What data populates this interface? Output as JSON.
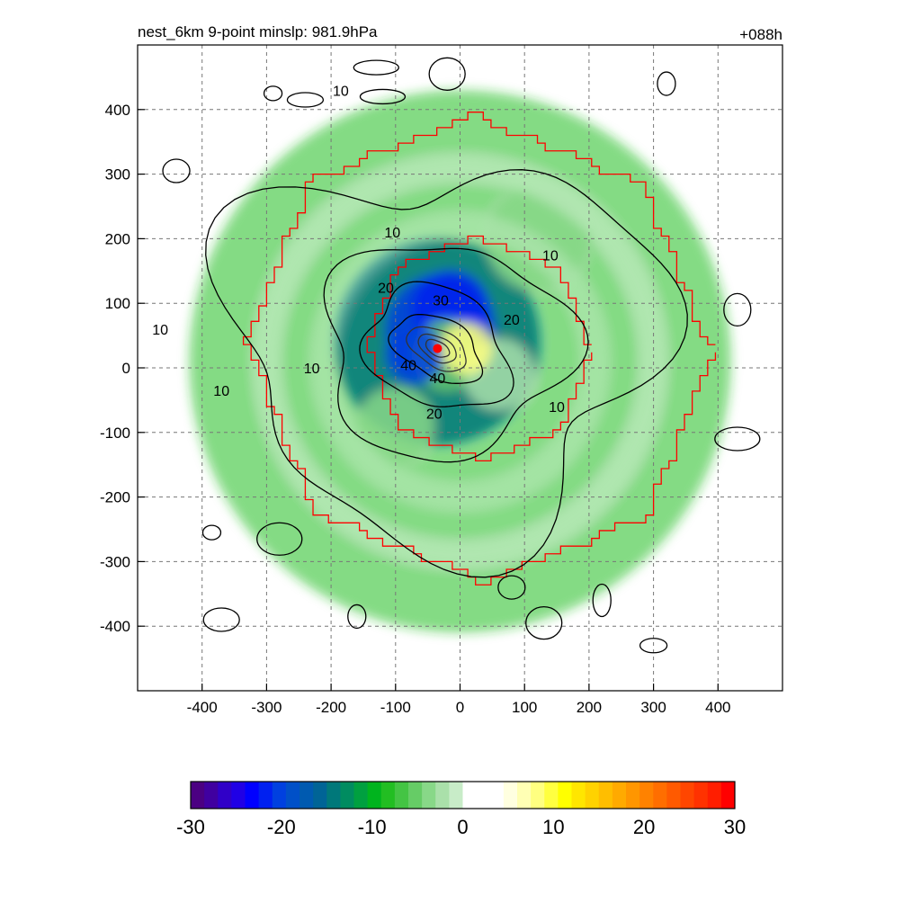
{
  "chart_data": {
    "type": "heatmap",
    "title": "nest_6km  9-point minslp: 981.9hPa",
    "subtitle": "+088h",
    "xlabel": "",
    "ylabel": "",
    "xlim": [
      -500,
      500
    ],
    "ylim": [
      -500,
      500
    ],
    "x_ticks": [
      -400,
      -300,
      -200,
      -100,
      0,
      100,
      200,
      300,
      400
    ],
    "y_ticks": [
      -400,
      -300,
      -200,
      -100,
      0,
      100,
      200,
      300,
      400
    ],
    "grid": true,
    "center_marker": {
      "x": -35,
      "y": 30,
      "color": "#ff0000"
    },
    "shaded_field": {
      "description_levels": [
        -30,
        -20,
        -10,
        0,
        10,
        20,
        30
      ],
      "blobs": [
        {
          "x": -35,
          "y": 40,
          "r": 160,
          "v": -14
        },
        {
          "x": -30,
          "y": 60,
          "r": 85,
          "v": -20
        },
        {
          "x": -15,
          "y": 90,
          "r": 60,
          "v": -22
        },
        {
          "x": -70,
          "y": 20,
          "r": 45,
          "v": -21
        },
        {
          "x": 10,
          "y": 30,
          "r": 40,
          "v": 8
        },
        {
          "x": -20,
          "y": 20,
          "r": 55,
          "v": -6
        },
        {
          "x": 60,
          "y": -10,
          "r": 55,
          "v": -3
        },
        {
          "x": -100,
          "y": -90,
          "r": 60,
          "v": -4
        },
        {
          "x": 120,
          "y": 200,
          "r": 80,
          "v": -4
        },
        {
          "x": 0,
          "y": 10,
          "r": 420,
          "v": -8
        }
      ]
    },
    "contours": {
      "levels": [
        10,
        20,
        30,
        40
      ],
      "labels": [
        {
          "text": "10",
          "x": -185,
          "y": 430
        },
        {
          "text": "10",
          "x": -105,
          "y": 210
        },
        {
          "text": "10",
          "x": 140,
          "y": 175
        },
        {
          "text": "10",
          "x": 150,
          "y": -60
        },
        {
          "text": "10",
          "x": -230,
          "y": 0
        },
        {
          "text": "10",
          "x": -370,
          "y": -35
        },
        {
          "text": "10",
          "x": -465,
          "y": 60
        },
        {
          "text": "20",
          "x": -115,
          "y": 125
        },
        {
          "text": "20",
          "x": 80,
          "y": 75
        },
        {
          "text": "20",
          "x": -40,
          "y": -70
        },
        {
          "text": "30",
          "x": -30,
          "y": 105
        },
        {
          "text": "40",
          "x": -35,
          "y": -15
        },
        {
          "text": "40",
          "x": -80,
          "y": 5
        }
      ]
    },
    "red_outline": {
      "inner_halfwidth": 190,
      "outer_halfwidth": 390,
      "center": [
        30,
        30
      ]
    },
    "colorbar": {
      "ticks": [
        "-30",
        "-20",
        "-10",
        "0",
        "10",
        "20",
        "30"
      ],
      "colors": [
        "#4b0082",
        "#4000a0",
        "#3000c8",
        "#2000e6",
        "#0000ff",
        "#0020f0",
        "#0040e0",
        "#0050c8",
        "#005ab0",
        "#006496",
        "#00787a",
        "#008c60",
        "#00a040",
        "#00b41e",
        "#22be22",
        "#44c444",
        "#66cc66",
        "#88d888",
        "#aae0aa",
        "#c8ecc8",
        "#ffffff",
        "#ffffff",
        "#ffffff",
        "#ffffe0",
        "#ffffb4",
        "#ffff80",
        "#ffff40",
        "#ffff00",
        "#ffe600",
        "#ffd200",
        "#ffbe00",
        "#ffaa00",
        "#ff9600",
        "#ff8200",
        "#ff6e00",
        "#ff5a00",
        "#ff4600",
        "#ff3200",
        "#ff1e00",
        "#ff0000"
      ]
    }
  }
}
